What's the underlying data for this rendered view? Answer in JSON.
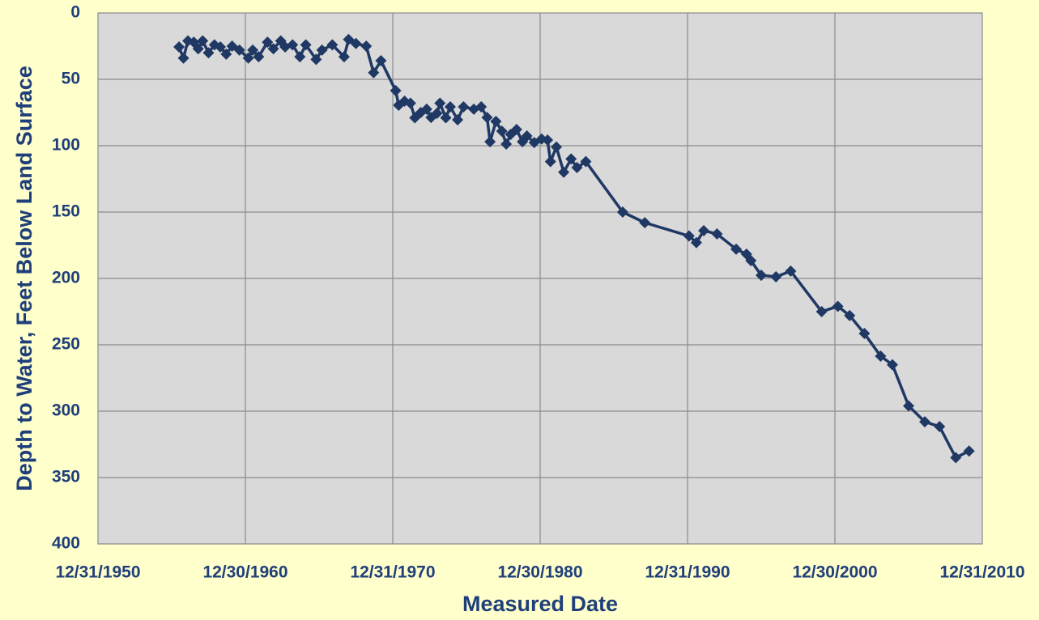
{
  "chart_data": {
    "type": "line",
    "x_label": "Measured Date",
    "y_label": "Depth to Water, Feet Below Land Surface",
    "y_inverted": true,
    "grid": true,
    "marker": "diamond",
    "xlim": [
      1951,
      2011
    ],
    "xticks": [
      {
        "value": 1951,
        "label": "12/31/1950"
      },
      {
        "value": 1961,
        "label": "12/30/1960"
      },
      {
        "value": 1971,
        "label": "12/31/1970"
      },
      {
        "value": 1981,
        "label": "12/30/1980"
      },
      {
        "value": 1991,
        "label": "12/31/1990"
      },
      {
        "value": 2001,
        "label": "12/30/2000"
      },
      {
        "value": 2011,
        "label": "12/31/2010"
      }
    ],
    "ylim": [
      0,
      400
    ],
    "yticks": [
      0,
      50,
      100,
      150,
      200,
      250,
      300,
      350,
      400
    ],
    "series": [
      {
        "color": "#1f3864",
        "x": [
          1956.5,
          1956.8,
          1957.1,
          1957.5,
          1957.8,
          1958.1,
          1958.5,
          1958.9,
          1959.3,
          1959.7,
          1960.1,
          1960.6,
          1961.2,
          1961.5,
          1961.9,
          1962.5,
          1962.9,
          1963.4,
          1963.7,
          1964.2,
          1964.7,
          1965.1,
          1965.8,
          1966.2,
          1966.9,
          1967.7,
          1968.0,
          1968.5,
          1969.2,
          1969.7,
          1970.2,
          1971.2,
          1971.4,
          1971.8,
          1972.2,
          1972.5,
          1972.9,
          1973.3,
          1973.6,
          1974.0,
          1974.2,
          1974.6,
          1974.9,
          1975.4,
          1975.8,
          1976.5,
          1977.0,
          1977.4,
          1977.6,
          1978.0,
          1978.4,
          1978.7,
          1979.0,
          1979.4,
          1979.8,
          1980.1,
          1980.6,
          1981.1,
          1981.5,
          1981.7,
          1982.1,
          1982.6,
          1983.1,
          1983.5,
          1984.1,
          1986.6,
          1988.1,
          1991.1,
          1991.6,
          1992.1,
          1993.0,
          1994.3,
          1995.0,
          1995.3,
          1996.0,
          1997.0,
          1998.0,
          2000.1,
          2001.2,
          2002.0,
          2003.0,
          2004.1,
          2004.9,
          2006.0,
          2007.1,
          2008.1,
          2009.2,
          2010.1
        ],
        "values": [
          25.6,
          34,
          21,
          22,
          27,
          21,
          30,
          24,
          25.6,
          31,
          25,
          28,
          34,
          28,
          33,
          22,
          27,
          21,
          25.6,
          24,
          33,
          24,
          35,
          28,
          24,
          33,
          20,
          23,
          25,
          45,
          36,
          58.5,
          69.5,
          66.5,
          68,
          79,
          75,
          72.5,
          78.7,
          75.6,
          68,
          79,
          70.7,
          80.5,
          70.7,
          72.5,
          70.7,
          78.7,
          97,
          81.7,
          89,
          98.8,
          91.5,
          87.8,
          97,
          92.7,
          97.6,
          95,
          95.7,
          112,
          101,
          120,
          110,
          116.5,
          112,
          150,
          158,
          168,
          173,
          164,
          166.5,
          178,
          181.7,
          186.6,
          197.6,
          198.8,
          194.5,
          225,
          221,
          228,
          241.5,
          258.5,
          265,
          296,
          308,
          311.6,
          335,
          330
        ]
      }
    ]
  }
}
